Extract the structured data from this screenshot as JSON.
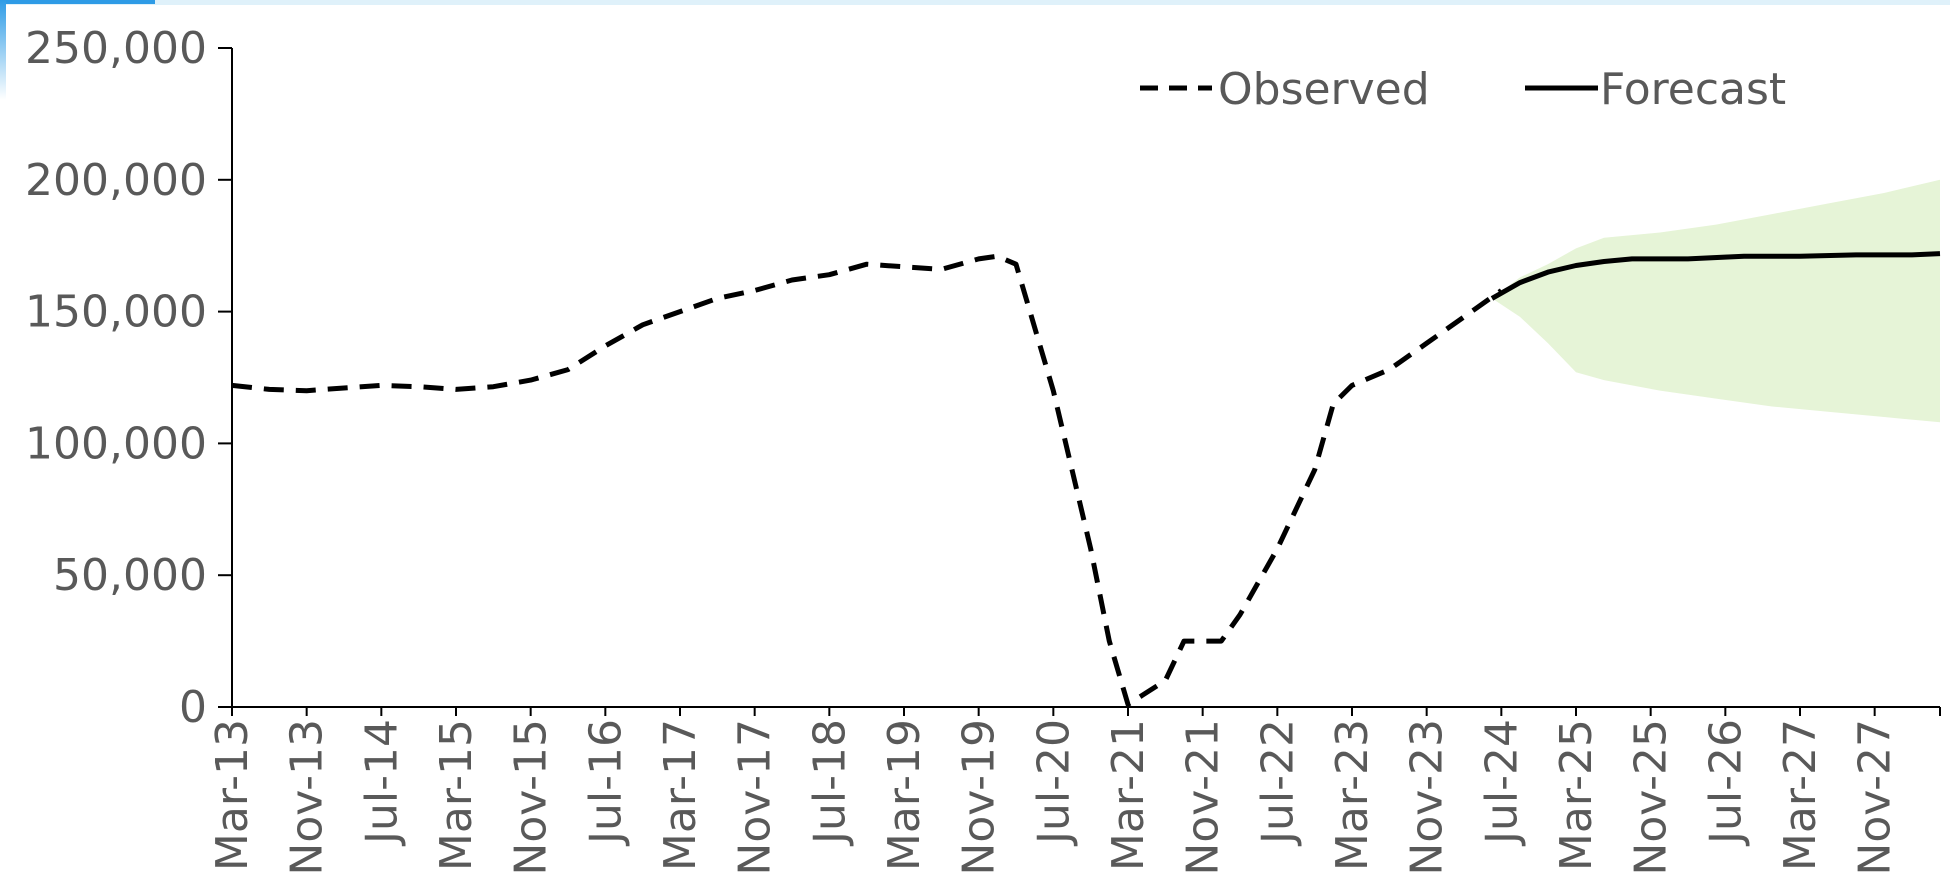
{
  "chart_data": {
    "type": "line",
    "title": "",
    "xlabel": "",
    "ylabel": "",
    "ylim": [
      0,
      250000
    ],
    "yticks": [
      0,
      50000,
      100000,
      150000,
      200000,
      250000
    ],
    "ytick_labels": [
      "0",
      "50,000",
      "100,000",
      "150,000",
      "200,000",
      "250,000"
    ],
    "xtick_labels": [
      "Mar-13",
      "Nov-13",
      "Jul-14",
      "Mar-15",
      "Nov-15",
      "Jul-16",
      "Mar-17",
      "Nov-17",
      "Jul-18",
      "Mar-19",
      "Nov-19",
      "Jul-20",
      "Mar-21",
      "Nov-21",
      "Jul-22",
      "Mar-23",
      "Nov-23",
      "Jul-24",
      "Mar-25",
      "Nov-25",
      "Jul-26",
      "Mar-27",
      "Nov-27"
    ],
    "x_start": "Mar-13",
    "x_end": "Jun-28",
    "legend_position": "top-right",
    "grid": false,
    "series": [
      {
        "name": "Observed",
        "style": "dashed",
        "color": "#000000",
        "points": [
          [
            "Mar-13",
            122000
          ],
          [
            "Jul-13",
            120500
          ],
          [
            "Nov-13",
            120000
          ],
          [
            "Mar-14",
            121000
          ],
          [
            "Jul-14",
            122000
          ],
          [
            "Nov-14",
            121500
          ],
          [
            "Mar-15",
            120500
          ],
          [
            "Jul-15",
            121500
          ],
          [
            "Nov-15",
            124000
          ],
          [
            "Mar-16",
            128000
          ],
          [
            "Jul-16",
            137000
          ],
          [
            "Nov-16",
            145000
          ],
          [
            "Mar-17",
            150000
          ],
          [
            "Jul-17",
            155000
          ],
          [
            "Nov-17",
            158000
          ],
          [
            "Mar-18",
            162000
          ],
          [
            "Jul-18",
            164000
          ],
          [
            "Nov-18",
            168000
          ],
          [
            "Mar-19",
            167000
          ],
          [
            "Jul-19",
            166000
          ],
          [
            "Nov-19",
            170000
          ],
          [
            "Jan-20",
            171000
          ],
          [
            "Mar-20",
            168000
          ],
          [
            "Jul-20",
            120000
          ],
          [
            "Nov-20",
            60000
          ],
          [
            "Jan-21",
            25000
          ],
          [
            "Mar-21",
            1000
          ],
          [
            "Jul-21",
            10000
          ],
          [
            "Sep-21",
            25000
          ],
          [
            "Jan-22",
            25000
          ],
          [
            "Mar-22",
            35000
          ],
          [
            "Jul-22",
            60000
          ],
          [
            "Nov-22",
            90000
          ],
          [
            "Jan-23",
            115000
          ],
          [
            "Mar-23",
            122000
          ],
          [
            "Jul-23",
            128000
          ],
          [
            "Nov-23",
            138000
          ],
          [
            "Mar-24",
            148000
          ],
          [
            "Jul-24",
            158000
          ]
        ]
      },
      {
        "name": "Forecast",
        "style": "solid",
        "color": "#000000",
        "points": [
          [
            "Jun-24",
            155000
          ],
          [
            "Sep-24",
            161000
          ],
          [
            "Dec-24",
            165000
          ],
          [
            "Mar-25",
            167500
          ],
          [
            "Jun-25",
            169000
          ],
          [
            "Sep-25",
            170000
          ],
          [
            "Mar-26",
            170000
          ],
          [
            "Sep-26",
            171000
          ],
          [
            "Mar-27",
            171000
          ],
          [
            "Sep-27",
            171500
          ],
          [
            "Mar-28",
            171500
          ],
          [
            "Jun-28",
            172000
          ]
        ]
      }
    ],
    "interval_band": {
      "color": "#e6f4d7",
      "upper": [
        [
          "Jun-24",
          155000
        ],
        [
          "Sep-24",
          163000
        ],
        [
          "Dec-24",
          168000
        ],
        [
          "Mar-25",
          174000
        ],
        [
          "Jun-25",
          178000
        ],
        [
          "Dec-25",
          180000
        ],
        [
          "Jun-26",
          183000
        ],
        [
          "Dec-26",
          187000
        ],
        [
          "Jun-27",
          191000
        ],
        [
          "Dec-27",
          195000
        ],
        [
          "Jun-28",
          200000
        ]
      ],
      "lower": [
        [
          "Jun-24",
          155000
        ],
        [
          "Sep-24",
          148000
        ],
        [
          "Dec-24",
          138000
        ],
        [
          "Mar-25",
          127000
        ],
        [
          "Jun-25",
          124000
        ],
        [
          "Dec-25",
          120000
        ],
        [
          "Jun-26",
          117000
        ],
        [
          "Dec-26",
          114000
        ],
        [
          "Jun-27",
          112000
        ],
        [
          "Dec-27",
          110000
        ],
        [
          "Jun-28",
          108000
        ]
      ]
    }
  }
}
